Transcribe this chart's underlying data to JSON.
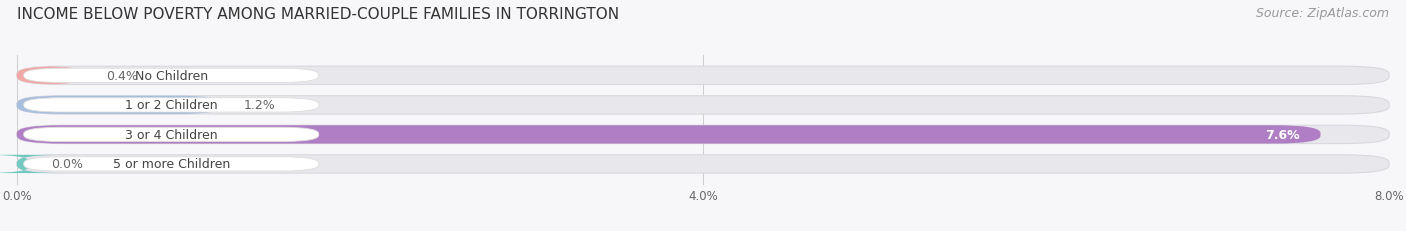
{
  "title": "INCOME BELOW POVERTY AMONG MARRIED-COUPLE FAMILIES IN TORRINGTON",
  "source": "Source: ZipAtlas.com",
  "categories": [
    "No Children",
    "1 or 2 Children",
    "3 or 4 Children",
    "5 or more Children"
  ],
  "values": [
    0.4,
    1.2,
    7.6,
    0.0
  ],
  "bar_colors": [
    "#f0a8a6",
    "#a8bedd",
    "#b07ec4",
    "#72c9c0"
  ],
  "bar_bg_color": "#e8e8ec",
  "label_bg_color": "#ffffff",
  "label_border_color": "#dddddd",
  "xlim": [
    0,
    8.0
  ],
  "xticks": [
    0.0,
    4.0,
    8.0
  ],
  "xtick_labels": [
    "0.0%",
    "4.0%",
    "8.0%"
  ],
  "title_fontsize": 11,
  "source_fontsize": 9,
  "label_fontsize": 9,
  "value_fontsize": 9,
  "bar_height": 0.62,
  "background_color": "#f7f7f9"
}
